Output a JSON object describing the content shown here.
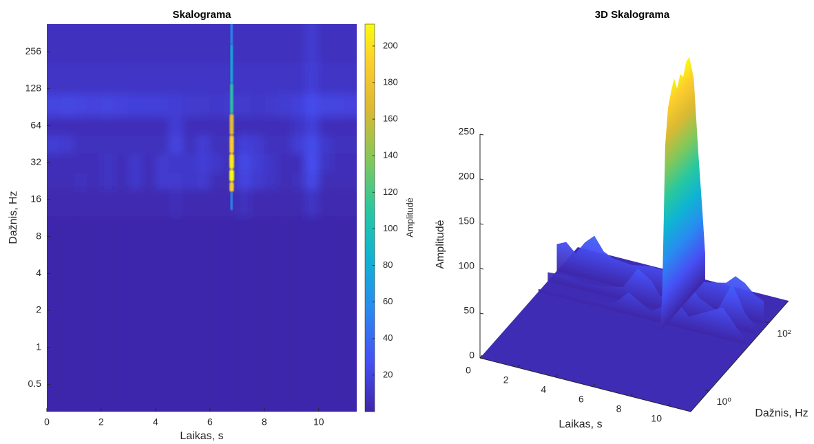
{
  "chart_data": [
    {
      "type": "heatmap",
      "title": "Skalograma",
      "x_label": "Laikas, s",
      "y_label": "Dažnis, Hz",
      "colorbar_label": "Amplitudė",
      "xlim": [
        0,
        11.4
      ],
      "xticks": [
        0,
        2,
        4,
        6,
        8,
        10
      ],
      "ylim": [
        0.3,
        430
      ],
      "yscale": "log",
      "yticks": [
        0.5,
        1,
        2,
        4,
        8,
        16,
        32,
        64,
        128,
        256
      ],
      "clim": [
        0,
        212
      ],
      "cticks": [
        20,
        40,
        60,
        80,
        100,
        120,
        140,
        160,
        180,
        200
      ],
      "colormap": "parula",
      "x": [
        0.25,
        0.75,
        1.25,
        1.75,
        2.25,
        2.75,
        3.25,
        3.75,
        4.25,
        4.75,
        5.25,
        5.75,
        6.25,
        6.75,
        7.25,
        7.75,
        8.25,
        8.75,
        9.25,
        9.75,
        10.25,
        10.75,
        11.25
      ],
      "y": [
        300,
        150,
        90,
        64,
        45,
        32,
        22,
        17,
        8
      ],
      "z": [
        [
          8,
          8,
          8,
          8,
          8,
          8,
          8,
          8,
          8,
          8,
          8,
          8,
          8,
          8,
          8,
          8,
          8,
          8,
          8,
          14,
          8,
          8,
          8
        ],
        [
          10,
          10,
          10,
          10,
          10,
          10,
          10,
          10,
          10,
          10,
          10,
          10,
          10,
          10,
          10,
          10,
          10,
          10,
          10,
          16,
          10,
          10,
          10
        ],
        [
          20,
          21,
          20,
          19,
          20,
          19,
          18,
          18,
          17,
          16,
          14,
          13,
          12,
          14,
          13,
          12,
          13,
          15,
          18,
          24,
          20,
          20,
          19
        ],
        [
          6,
          6,
          6,
          6,
          6,
          6,
          6,
          6,
          6,
          16,
          6,
          6,
          6,
          6,
          6,
          6,
          6,
          6,
          10,
          18,
          6,
          6,
          6
        ],
        [
          16,
          14,
          8,
          7,
          7,
          7,
          7,
          7,
          7,
          20,
          7,
          16,
          7,
          7,
          18,
          14,
          7,
          7,
          16,
          24,
          12,
          7,
          7
        ],
        [
          6,
          6,
          6,
          6,
          10,
          6,
          12,
          6,
          14,
          12,
          12,
          16,
          12,
          6,
          22,
          16,
          10,
          6,
          6,
          26,
          10,
          6,
          6
        ],
        [
          5,
          5,
          8,
          5,
          10,
          5,
          12,
          5,
          14,
          14,
          12,
          14,
          5,
          5,
          20,
          14,
          10,
          5,
          8,
          22,
          5,
          5,
          5
        ],
        [
          3,
          3,
          3,
          3,
          3,
          3,
          3,
          3,
          3,
          6,
          3,
          3,
          3,
          3,
          8,
          3,
          3,
          3,
          3,
          10,
          3,
          3,
          3
        ],
        [
          1,
          1,
          1,
          1,
          1,
          1,
          1,
          1,
          1,
          1,
          1,
          1,
          1,
          1,
          1,
          1,
          1,
          1,
          1,
          1,
          1,
          1,
          1
        ]
      ],
      "peak": {
        "x": 6.8,
        "y": [
          430,
          200,
          100,
          64,
          45,
          32,
          25,
          20,
          17
        ],
        "values": [
          60,
          80,
          110,
          170,
          190,
          205,
          212,
          190,
          60
        ]
      }
    },
    {
      "type": "surface3d",
      "title": "3D Skalograma",
      "x_label": "Laikas, s",
      "y_label": "Dažnis, Hz",
      "z_label": "Amplitudė",
      "xlim": [
        0,
        11.2
      ],
      "xticks": [
        0,
        2,
        4,
        6,
        8,
        10
      ],
      "ylim": [
        0.25,
        450
      ],
      "yscale": "log",
      "yticks": [
        {
          "value": 1,
          "label": "10⁰"
        },
        {
          "value": 100,
          "label": "10²"
        }
      ],
      "zlim": [
        0,
        250
      ],
      "zticks": [
        0,
        50,
        100,
        150,
        200,
        250
      ],
      "clim": [
        0,
        270
      ],
      "colormap": "parula",
      "ridges": [
        {
          "y": 90,
          "x": [
            0,
            0.5,
            1,
            1.5,
            2,
            2.5,
            3,
            4,
            5,
            6,
            7,
            8,
            9,
            9.5,
            10,
            10.5,
            11
          ],
          "values": [
            30,
            35,
            25,
            40,
            50,
            35,
            30,
            28,
            32,
            30,
            28,
            30,
            35,
            45,
            40,
            30,
            25
          ]
        },
        {
          "y": 45,
          "x": [
            0,
            1,
            2,
            3,
            4,
            4.8,
            5.5,
            6,
            7.3,
            8,
            9,
            9.8,
            10.5,
            11
          ],
          "values": [
            10,
            12,
            8,
            10,
            15,
            40,
            30,
            15,
            45,
            25,
            15,
            50,
            20,
            10
          ]
        },
        {
          "y": 22,
          "x": [
            0,
            2,
            4,
            4.8,
            6,
            7.3,
            8,
            9.8,
            11
          ],
          "values": [
            3,
            5,
            8,
            25,
            10,
            30,
            15,
            35,
            5
          ]
        }
      ],
      "wall": {
        "x": 6.8,
        "y": [
          14,
          16,
          18,
          20,
          25,
          32,
          40,
          50,
          64,
          80,
          100,
          128,
          180,
          256,
          350,
          430
        ],
        "values": [
          0,
          40,
          120,
          200,
          240,
          255,
          265,
          250,
          262,
          255,
          268,
          270,
          240,
          150,
          80,
          30
        ]
      }
    }
  ]
}
